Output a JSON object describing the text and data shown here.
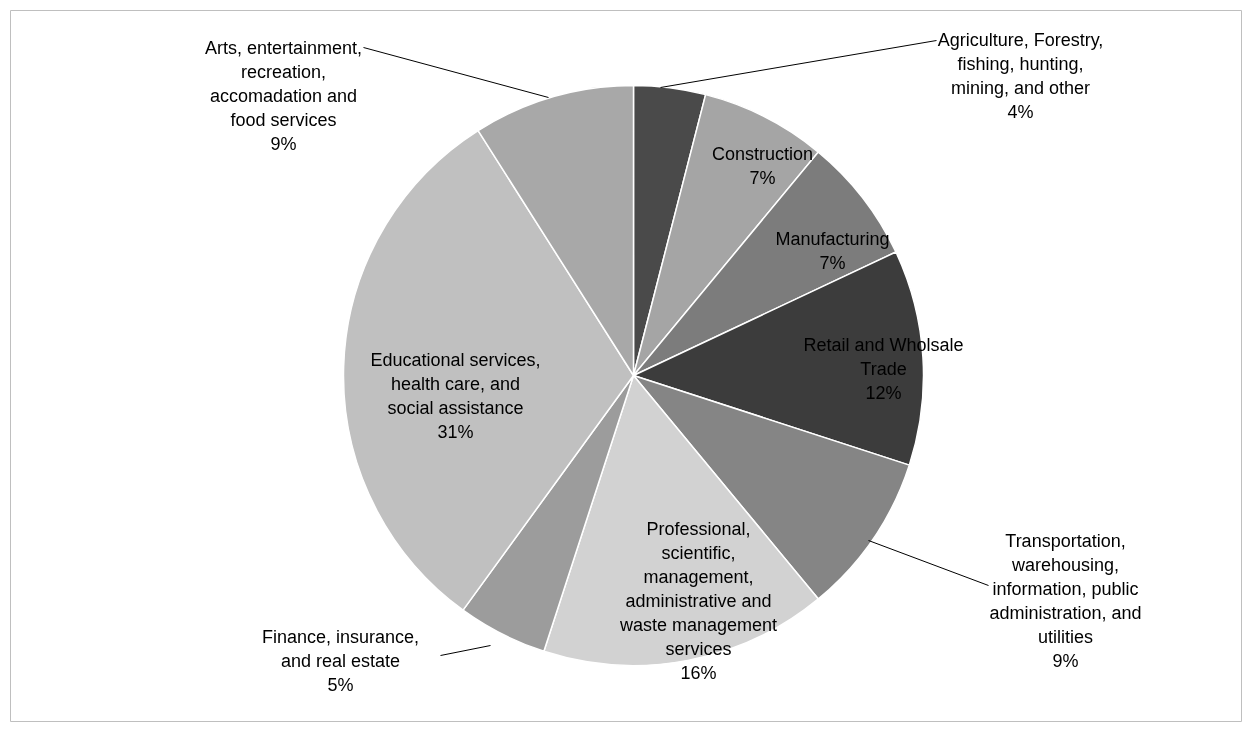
{
  "chart_data": {
    "type": "pie",
    "categories": [
      "Agriculture, Forestry, fishing, hunting, mining, and other",
      "Construction",
      "Manufacturing",
      "Retail and Wholsale Trade",
      "Transportation, warehousing, information, public administration, and utilities",
      "Professional, scientific, management, administrative and waste management services",
      "Finance, insurance, and real estate",
      "Educational services, health care, and social assistance",
      "Arts, entertainment, recreation, accomadation and food services"
    ],
    "values": [
      4,
      7,
      7,
      12,
      9,
      16,
      5,
      31,
      9
    ],
    "value_labels": [
      "4%",
      "7%",
      "7%",
      "12%",
      "9%",
      "16%",
      "5%",
      "31%",
      "9%"
    ],
    "colors": [
      "#4a4a4a",
      "#a5a5a5",
      "#7c7c7c",
      "#3c3c3c",
      "#858585",
      "#d2d2d2",
      "#9c9c9c",
      "#c0c0c0",
      "#a8a8a8"
    ],
    "legend": false
  }
}
